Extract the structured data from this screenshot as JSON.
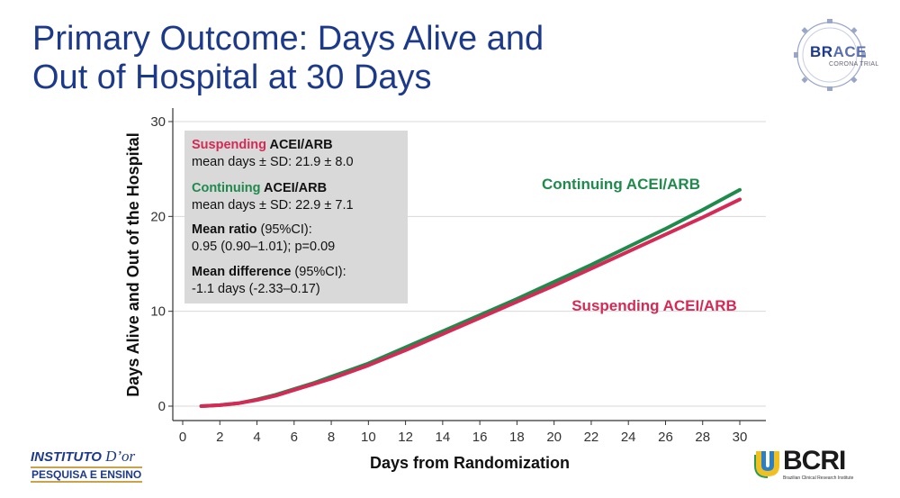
{
  "slide": {
    "title_line1": "Primary Outcome: Days Alive and",
    "title_line2": "Out of Hospital at 30 Days"
  },
  "logos": {
    "brace_prefix": "BR",
    "brace_suffix": "ACE",
    "brace_sub": "CORONA TRIAL",
    "institute_line1": "INSTITUTO",
    "institute_dor": "D’or",
    "institute_line2": "PESQUISA E ENSINO",
    "bcri_name": "BCRI",
    "bcri_full": "Brazilian Clinical Research Institute"
  },
  "colors": {
    "title": "#1d3a8a",
    "continuing": "#1f8a4c",
    "suspending": "#d42a55",
    "infobox": "#d9d9d9"
  },
  "chart_data": {
    "type": "line",
    "xlabel": "Days from Randomization",
    "ylabel": "Days Alive and Out of the Hospital",
    "xlim": [
      0,
      30
    ],
    "ylim": [
      0,
      30
    ],
    "xticks": [
      0,
      2,
      4,
      6,
      8,
      10,
      12,
      14,
      16,
      18,
      20,
      22,
      24,
      26,
      28,
      30
    ],
    "yticks": [
      0,
      10,
      20,
      30
    ],
    "grid": "horizontal",
    "series": [
      {
        "name": "Continuing ACEI/ARB",
        "color": "#1f8a4c",
        "x": [
          1,
          2,
          3,
          4,
          5,
          6,
          7,
          8,
          9,
          10,
          12,
          14,
          16,
          18,
          20,
          22,
          24,
          26,
          28,
          30
        ],
        "y": [
          0,
          0.1,
          0.3,
          0.7,
          1.2,
          1.8,
          2.4,
          3.1,
          3.8,
          4.5,
          6.2,
          7.9,
          9.6,
          11.3,
          13.1,
          14.9,
          16.8,
          18.7,
          20.7,
          22.8
        ]
      },
      {
        "name": "Suspending ACEI/ARB",
        "color": "#d42a55",
        "x": [
          1,
          2,
          3,
          4,
          5,
          6,
          7,
          8,
          9,
          10,
          12,
          14,
          16,
          18,
          20,
          22,
          24,
          26,
          28,
          30
        ],
        "y": [
          0,
          0.1,
          0.3,
          0.65,
          1.1,
          1.7,
          2.3,
          2.9,
          3.6,
          4.3,
          5.9,
          7.6,
          9.3,
          11.0,
          12.7,
          14.5,
          16.3,
          18.1,
          19.9,
          21.8
        ]
      }
    ],
    "annotations": {
      "continuing_label": "Continuing ACEI/ARB",
      "suspending_label": "Suspending ACEI/ARB"
    },
    "infobox": {
      "s_bold": "Suspending",
      "s_rest": " ACEI/ARB",
      "s_stat": "mean days ± SD: 21.9 ± 8.0",
      "c_bold": "Continuing",
      "c_rest": " ACEI/ARB",
      "c_stat": "mean days ± SD: 22.9 ± 7.1",
      "ratio_bold": "Mean ratio",
      "ratio_rest": " (95%CI):",
      "ratio_val": "0.95 (0.90–1.01); p=0.09",
      "diff_bold": "Mean difference",
      "diff_rest": " (95%CI):",
      "diff_val": "-1.1 days (-2.33–0.17)"
    }
  }
}
